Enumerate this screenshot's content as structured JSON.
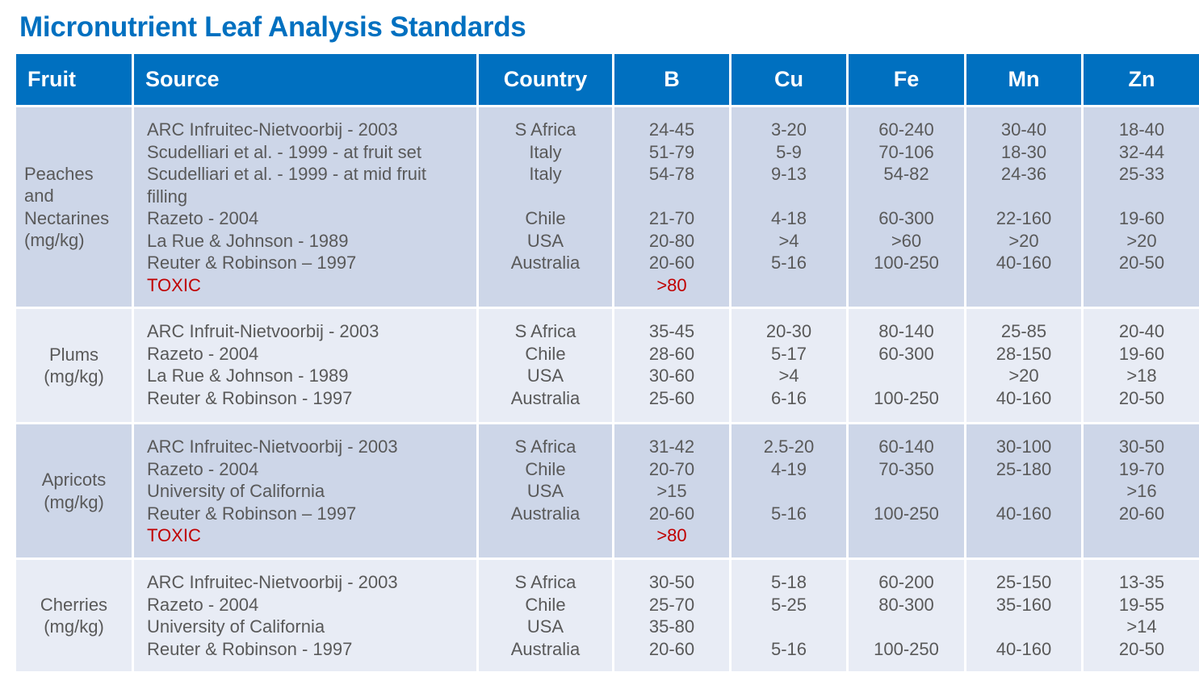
{
  "header": {
    "title": "Micronutrient Leaf Analysis Standards"
  },
  "table": {
    "columns": [
      "Fruit",
      "Source",
      "Country",
      "B",
      "Cu",
      "Fe",
      "Mn",
      "Zn"
    ],
    "rows": [
      {
        "fruit": [
          "Peaches",
          "and",
          "Nectarines",
          "(mg/kg)"
        ],
        "highlight": {
          "line": 7,
          "color": "#c00000"
        },
        "source": [
          "ARC Infruitec-Nietvoorbij - 2003",
          "Scudelliari et al. - 1999 - at fruit set",
          "Scudelliari et al. - 1999 - at mid fruit",
          "filling",
          "Razeto - 2004",
          "La Rue & Johnson - 1989",
          "Reuter & Robinson – 1997",
          "TOXIC"
        ],
        "country": [
          "S Africa",
          "Italy",
          "Italy",
          null,
          "Chile",
          "USA",
          "Australia"
        ],
        "B": [
          "24-45",
          "51-79",
          "54-78",
          null,
          "21-70",
          "20-80",
          "20-60",
          ">80"
        ],
        "Cu": [
          "3-20",
          "5-9",
          "9-13",
          null,
          "4-18",
          ">4",
          "5-16"
        ],
        "Fe": [
          "60-240",
          "70-106",
          "54-82",
          null,
          "60-300",
          ">60",
          "100-250"
        ],
        "Mn": [
          "30-40",
          "18-30",
          "24-36",
          null,
          "22-160",
          ">20",
          "40-160"
        ],
        "Zn": [
          "18-40",
          "32-44",
          "25-33",
          null,
          "19-60",
          ">20",
          "20-50"
        ]
      },
      {
        "fruit": [
          "Plums",
          "(mg/kg)"
        ],
        "source": [
          "ARC Infruit-Nietvoorbij - 2003",
          "Razeto - 2004",
          "La Rue & Johnson - 1989",
          "Reuter & Robinson - 1997"
        ],
        "country": [
          "S Africa",
          "Chile",
          "USA",
          "Australia"
        ],
        "B": [
          "35-45",
          "28-60",
          "30-60",
          "25-60"
        ],
        "Cu": [
          "20-30",
          "5-17",
          ">4",
          "6-16"
        ],
        "Fe": [
          "80-140",
          "60-300",
          null,
          "100-250"
        ],
        "Mn": [
          "25-85",
          "28-150",
          ">20",
          "40-160"
        ],
        "Zn": [
          "20-40",
          "19-60",
          ">18",
          "20-50"
        ]
      },
      {
        "fruit": [
          "Apricots",
          "(mg/kg)"
        ],
        "highlight": {
          "line": 4,
          "color": "#c00000"
        },
        "source": [
          "ARC Infruitec-Nietvoorbij - 2003",
          "Razeto - 2004",
          "University of California",
          "Reuter & Robinson – 1997",
          "TOXIC"
        ],
        "country": [
          "S Africa",
          "Chile",
          "USA",
          "Australia"
        ],
        "B": [
          "31-42",
          "20-70",
          ">15",
          "20-60",
          ">80"
        ],
        "Cu": [
          "2.5-20",
          "4-19",
          null,
          "5-16"
        ],
        "Fe": [
          "60-140",
          "70-350",
          null,
          "100-250"
        ],
        "Mn": [
          "30-100",
          "25-180",
          null,
          "40-160"
        ],
        "Zn": [
          "30-50",
          "19-70",
          ">16",
          "20-60"
        ]
      },
      {
        "fruit": [
          "Cherries",
          "(mg/kg)"
        ],
        "source": [
          "ARC Infruitec-Nietvoorbij - 2003",
          "Razeto - 2004",
          "University of California",
          "Reuter & Robinson - 1997"
        ],
        "country": [
          "S Africa",
          "Chile",
          "USA",
          "Australia"
        ],
        "B": [
          "30-50",
          "25-70",
          "35-80",
          "20-60"
        ],
        "Cu": [
          "5-18",
          "5-25",
          null,
          "5-16"
        ],
        "Fe": [
          "60-200",
          "80-300",
          null,
          "100-250"
        ],
        "Mn": [
          "25-150",
          "35-160",
          null,
          "40-160"
        ],
        "Zn": [
          "13-35",
          "19-55",
          ">14",
          "20-50"
        ]
      }
    ]
  }
}
